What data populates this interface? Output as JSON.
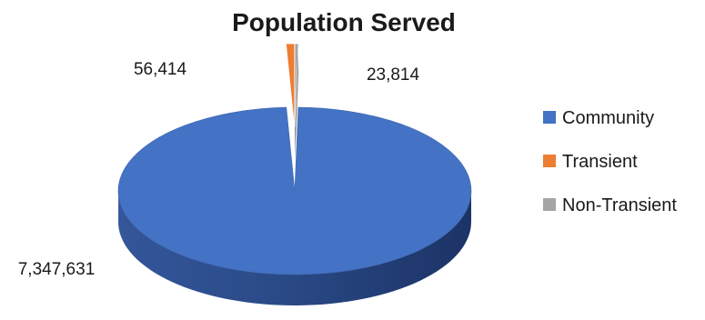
{
  "chart_data": {
    "type": "pie",
    "title": "Population Served",
    "categories": [
      "Community",
      "Transient",
      "Non-Transient"
    ],
    "values": [
      7347631,
      56414,
      23814
    ],
    "value_labels": [
      "7,347,631",
      "56,414",
      "23,814"
    ],
    "colors": [
      "#4472C4",
      "#ED7D31",
      "#A5A5A5"
    ],
    "style": "3d-exploded",
    "legend_position": "right"
  }
}
